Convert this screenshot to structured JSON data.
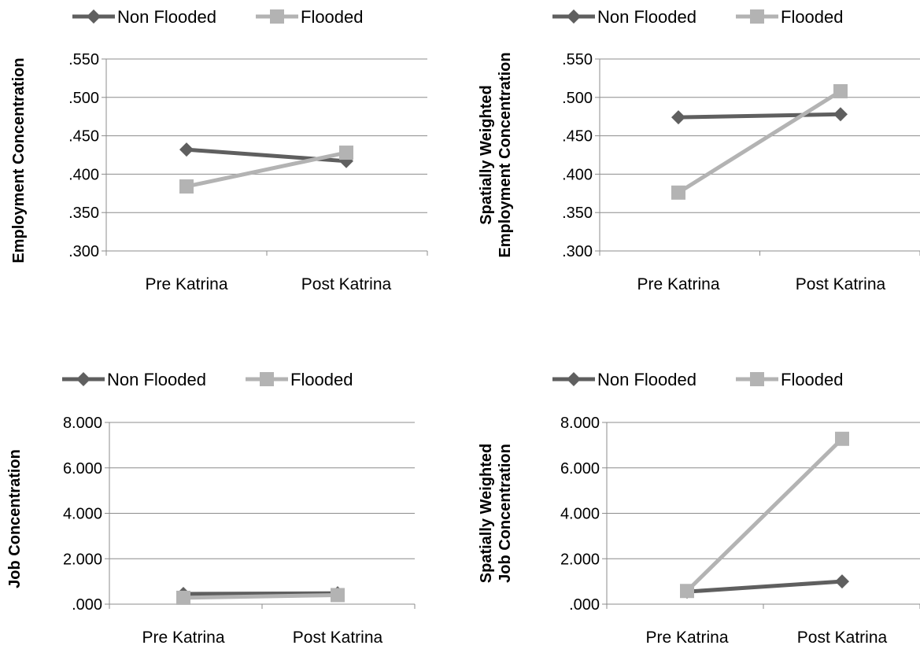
{
  "colors": {
    "non_flooded": "#5f5f5f",
    "flooded": "#b3b3b3",
    "grid": "#8c8c8c",
    "axis": "#8c8c8c",
    "text": "#000000"
  },
  "chart_data": [
    {
      "type": "line",
      "ylabel": "Employment Concentration",
      "categories": [
        "Pre Katrina",
        "Post Katrina"
      ],
      "yticks": [
        ".300",
        ".350",
        ".400",
        ".450",
        ".500",
        ".550"
      ],
      "ylim": [
        0.3,
        0.55
      ],
      "grid": true,
      "legend_position": "top",
      "series": [
        {
          "name": "Non Flooded",
          "marker": "diamond",
          "values": [
            0.432,
            0.417
          ]
        },
        {
          "name": "Flooded",
          "marker": "square",
          "values": [
            0.384,
            0.428
          ]
        }
      ]
    },
    {
      "type": "line",
      "ylabel": [
        "Spatially Weighted",
        "Employment Concentration"
      ],
      "categories": [
        "Pre Katrina",
        "Post Katrina"
      ],
      "yticks": [
        ".300",
        ".350",
        ".400",
        ".450",
        ".500",
        ".550"
      ],
      "ylim": [
        0.3,
        0.55
      ],
      "grid": true,
      "legend_position": "top",
      "series": [
        {
          "name": "Non Flooded",
          "marker": "diamond",
          "values": [
            0.474,
            0.478
          ]
        },
        {
          "name": "Flooded",
          "marker": "square",
          "values": [
            0.376,
            0.508
          ]
        }
      ]
    },
    {
      "type": "line",
      "ylabel": "Job Concentration",
      "categories": [
        "Pre Katrina",
        "Post Katrina"
      ],
      "yticks": [
        ".000",
        "2.000",
        "4.000",
        "6.000",
        "8.000"
      ],
      "ylim": [
        0,
        8
      ],
      "grid": true,
      "legend_position": "top",
      "series": [
        {
          "name": "Non Flooded",
          "marker": "diamond",
          "values": [
            0.45,
            0.48
          ]
        },
        {
          "name": "Flooded",
          "marker": "square",
          "values": [
            0.28,
            0.4
          ]
        }
      ]
    },
    {
      "type": "line",
      "ylabel": [
        "Spatially Weighted",
        "Job Concentration"
      ],
      "categories": [
        "Pre Katrina",
        "Post Katrina"
      ],
      "yticks": [
        ".000",
        "2.000",
        "4.000",
        "6.000",
        "8.000"
      ],
      "ylim": [
        0,
        8
      ],
      "grid": true,
      "legend_position": "top",
      "series": [
        {
          "name": "Non Flooded",
          "marker": "diamond",
          "values": [
            0.55,
            1.0
          ]
        },
        {
          "name": "Flooded",
          "marker": "square",
          "values": [
            0.58,
            7.28
          ]
        }
      ]
    }
  ]
}
